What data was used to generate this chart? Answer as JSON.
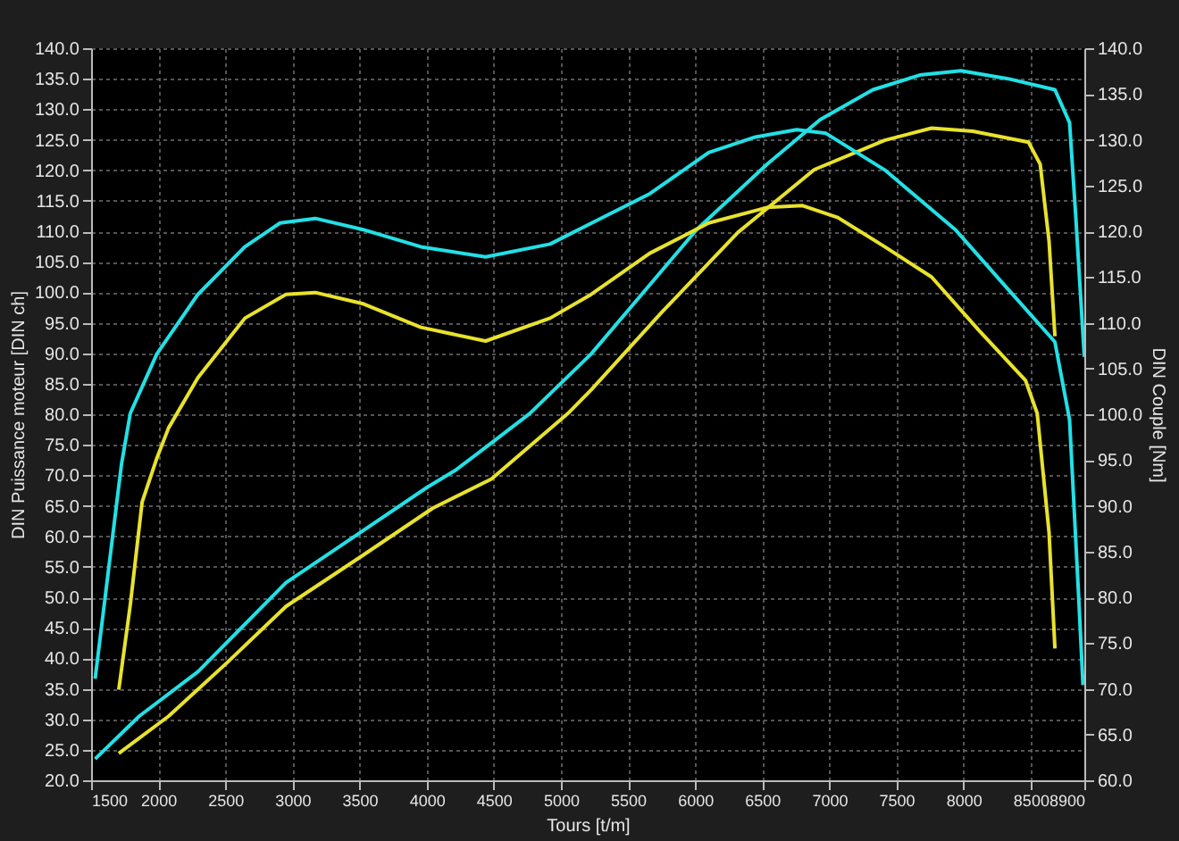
{
  "chart_data": {
    "type": "line",
    "xlabel": "Tours [t/m]",
    "ylabel": "DIN Puissance moteur [DIN ch]",
    "y2label": "DIN Couple [Nm]",
    "xlim": [
      1500,
      8900
    ],
    "xticks": [
      1500,
      2000,
      2500,
      3000,
      3500,
      4000,
      4500,
      5000,
      5500,
      6000,
      6500,
      7000,
      7500,
      8000,
      8500,
      8900
    ],
    "ylim": [
      20,
      140
    ],
    "yticks": [
      {
        "value": 20,
        "label": "20.0"
      },
      {
        "value": 25,
        "label": "25.0"
      },
      {
        "value": 30,
        "label": "30.0"
      },
      {
        "value": 35,
        "label": "35.0"
      },
      {
        "value": 40,
        "label": "40.0"
      },
      {
        "value": 45,
        "label": "45.0"
      },
      {
        "value": 50,
        "label": "50.0"
      },
      {
        "value": 55,
        "label": "55.0"
      },
      {
        "value": 60,
        "label": "60.0"
      },
      {
        "value": 65,
        "label": "65.0"
      },
      {
        "value": 70,
        "label": "70.0"
      },
      {
        "value": 75,
        "label": "75.0"
      },
      {
        "value": 80,
        "label": "80.0"
      },
      {
        "value": 85,
        "label": "85.0"
      },
      {
        "value": 90,
        "label": "90.0"
      },
      {
        "value": 95,
        "label": "95.0"
      },
      {
        "value": 100,
        "label": "100.0"
      },
      {
        "value": 105,
        "label": "105.0"
      },
      {
        "value": 110,
        "label": "110.0"
      },
      {
        "value": 115,
        "label": "115.0"
      },
      {
        "value": 120,
        "label": "120.0"
      },
      {
        "value": 125,
        "label": "125.0"
      },
      {
        "value": 130,
        "label": "130.0"
      },
      {
        "value": 135,
        "label": "135.0"
      },
      {
        "value": 140,
        "label": "140.0"
      }
    ],
    "y2lim": [
      60,
      140
    ],
    "y2ticks": [
      {
        "value": 60,
        "label": "60.0"
      },
      {
        "value": 65,
        "label": "65.0"
      },
      {
        "value": 70,
        "label": "70.0"
      },
      {
        "value": 75,
        "label": "75.0"
      },
      {
        "value": 80,
        "label": "80.0"
      },
      {
        "value": 85,
        "label": "85.0"
      },
      {
        "value": 90,
        "label": "90.0"
      },
      {
        "value": 95,
        "label": "95.0"
      },
      {
        "value": 100,
        "label": "100.0"
      },
      {
        "value": 105,
        "label": "105.0"
      },
      {
        "value": 110,
        "label": "110.0"
      },
      {
        "value": 115,
        "label": "115.0"
      },
      {
        "value": 120,
        "label": "120.0"
      },
      {
        "value": 125,
        "label": "125.0"
      },
      {
        "value": 130,
        "label": "130.0"
      },
      {
        "value": 135,
        "label": "135.0"
      },
      {
        "value": 140,
        "label": "140.0"
      }
    ],
    "grid": true,
    "marker": "none",
    "line_style": "solid",
    "series": [
      {
        "color": "#22e0e6",
        "x": [
          1530,
          1858,
          2296,
          2952,
          3477,
          4002,
          4220,
          4483,
          4767,
          5226,
          6013,
          6538,
          6932,
          7325,
          7675,
          7981,
          8331,
          8681,
          8790,
          8834,
          8900
        ],
        "values": [
          23.5,
          30.5,
          37.8,
          52.4,
          60.2,
          68.0,
          70.9,
          75.3,
          80.1,
          89.9,
          110.3,
          121.0,
          128.3,
          133.2,
          135.6,
          136.3,
          135.0,
          133.2,
          127.8,
          113.2,
          89.4
        ]
      },
      {
        "color": "#e8e22c",
        "x": [
          1706,
          2077,
          2514,
          2952,
          3520,
          4045,
          4483,
          5051,
          5226,
          5751,
          6319,
          6888,
          7413,
          7762,
          8069,
          8484,
          8571,
          8637,
          8681
        ],
        "values": [
          24.4,
          30.5,
          39.3,
          48.5,
          56.8,
          64.6,
          69.4,
          80.1,
          84.0,
          96.7,
          109.8,
          120.1,
          124.9,
          126.9,
          126.4,
          124.6,
          121.0,
          108.4,
          92.8
        ]
      },
      {
        "color": "#22e0e6",
        "axis": "y2",
        "x": [
          1530,
          1727,
          1792,
          1990,
          2296,
          2646,
          2908,
          3170,
          3520,
          3957,
          4439,
          4920,
          5270,
          5663,
          6101,
          6450,
          6757,
          6975,
          7413,
          7937,
          8287,
          8681,
          8790,
          8856,
          8890
        ],
        "values": [
          71.1,
          94.6,
          100.1,
          106.6,
          113.1,
          118.3,
          120.9,
          121.4,
          120.2,
          118.3,
          117.2,
          118.6,
          121.2,
          124.1,
          128.6,
          130.3,
          131.1,
          130.7,
          126.7,
          120.2,
          114.4,
          107.9,
          99.4,
          80.6,
          70.4
        ]
      },
      {
        "color": "#e8e22c",
        "axis": "y2",
        "x": [
          1706,
          1793,
          1880,
          1990,
          2077,
          2296,
          2646,
          2952,
          3170,
          3520,
          3957,
          4439,
          4920,
          5226,
          5663,
          6101,
          6538,
          6801,
          7063,
          7413,
          7762,
          8112,
          8462,
          8549,
          8637,
          8681
        ],
        "values": [
          69.9,
          79.3,
          90.4,
          95.2,
          98.5,
          104.0,
          110.5,
          113.1,
          113.3,
          112.1,
          109.5,
          108.0,
          110.5,
          113.1,
          117.6,
          120.9,
          122.6,
          122.8,
          121.5,
          118.3,
          115.0,
          109.2,
          103.7,
          100.1,
          87.1,
          74.4
        ]
      }
    ]
  }
}
